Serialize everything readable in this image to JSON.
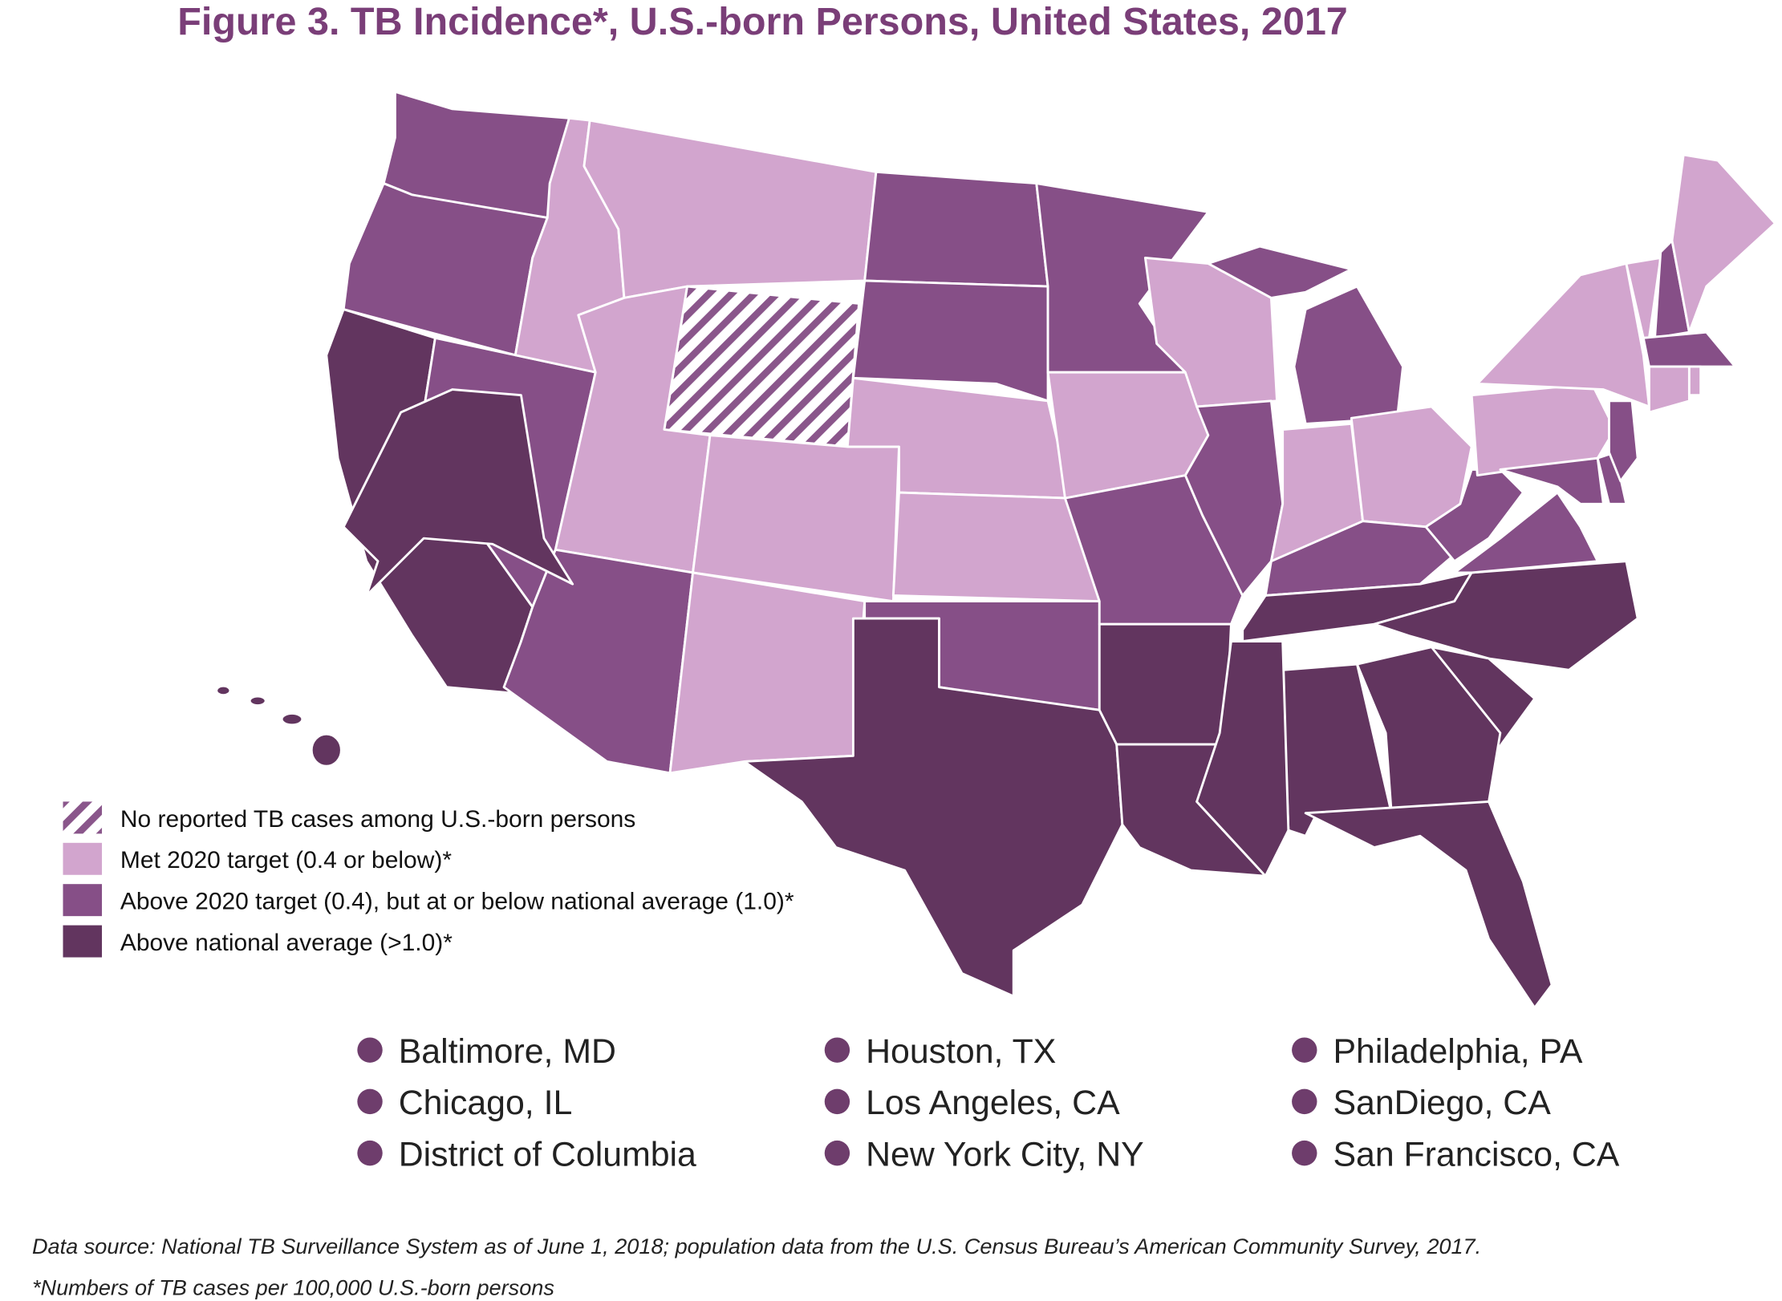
{
  "title": "Figure 3. TB Incidence*, U.S.-born Persons, United States, 2017",
  "legend": [
    {
      "label": "No reported TB cases among U.S.-born persons",
      "color": "#8a568b"
    },
    {
      "label": "Met 2020 target (0.4 or below)*",
      "color": "#d2a5ce"
    },
    {
      "label": "Above 2020 target (0.4), but at or below national average (1.0)*",
      "color": "#864f87"
    },
    {
      "label": "Above national average (>1.0)*",
      "color": "#62355f"
    }
  ],
  "cities": [
    "Baltimore, MD",
    "Chicago, IL",
    "District of Columbia",
    "Houston, TX",
    "Los Angeles, CA",
    "New York City, NY",
    "Philadelphia, PA",
    "SanDiego, CA",
    "San Francisco, CA"
  ],
  "footnotes": {
    "source": "Data source: National TB Surveillance System as of June 1, 2018; population data from the U.S. Census Bureau’s American Community Survey, 2017.",
    "note": "*Numbers of TB cases per 100,000 U.S.-born persons"
  }
}
